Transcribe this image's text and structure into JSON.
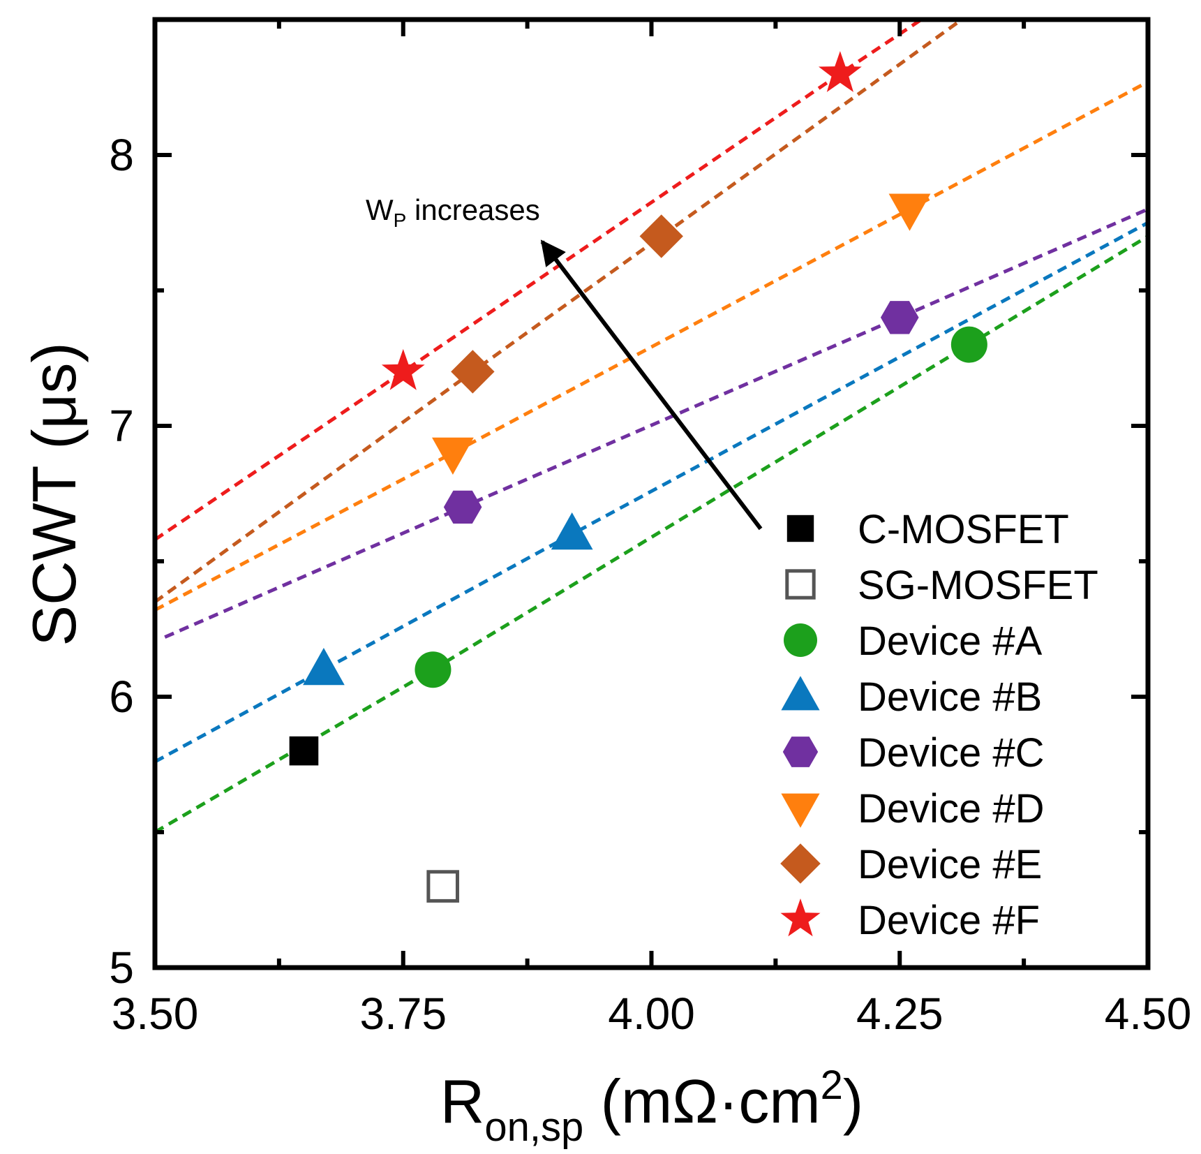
{
  "chart_data": {
    "type": "scatter",
    "title": "",
    "xlabel": {
      "main": "R",
      "sub": "on,sp",
      "unit_prefix": " (mΩ·cm",
      "sup": "2",
      "unit_suffix": ")"
    },
    "ylabel": "SCWT (μs)",
    "xlim": [
      3.5,
      4.5
    ],
    "ylim": [
      5,
      8.5
    ],
    "x_ticks": [
      3.5,
      3.75,
      4.0,
      4.25,
      4.5
    ],
    "x_tick_labels": [
      "3.50",
      "3.75",
      "4.00",
      "4.25",
      "4.50"
    ],
    "x_minor_ticks": [
      3.625,
      3.875,
      4.125,
      4.375
    ],
    "y_ticks": [
      5,
      6,
      7,
      8
    ],
    "y_tick_labels": [
      "5",
      "6",
      "7",
      "8"
    ],
    "y_minor_ticks": [
      5.5,
      6.5,
      7.5
    ],
    "grid": false,
    "legend_position": "bottom-right",
    "series": [
      {
        "name": "C-MOSFET",
        "marker": "square",
        "color": "#000000",
        "filled": true,
        "points": [
          [
            3.65,
            5.8
          ]
        ]
      },
      {
        "name": "SG-MOSFET",
        "marker": "square",
        "color": "#555555",
        "filled": false,
        "points": [
          [
            3.79,
            5.3
          ]
        ]
      },
      {
        "name": "Device #A",
        "marker": "circle",
        "color": "#1ca01c",
        "filled": true,
        "points": [
          [
            3.78,
            6.1
          ],
          [
            4.32,
            7.3
          ]
        ],
        "trend": [
          [
            3.5,
            5.5
          ],
          [
            3.78,
            6.1
          ],
          [
            4.32,
            7.3
          ],
          [
            4.5,
            7.7
          ]
        ]
      },
      {
        "name": "Device #B",
        "marker": "triangle-up",
        "color": "#0a78be",
        "filled": true,
        "points": [
          [
            3.67,
            6.1
          ],
          [
            3.92,
            6.6
          ]
        ],
        "trend": [
          [
            3.5,
            5.76
          ],
          [
            3.67,
            6.1
          ],
          [
            3.92,
            6.6
          ],
          [
            4.5,
            7.75
          ]
        ]
      },
      {
        "name": "Device #C",
        "marker": "hexagon",
        "color": "#7030a0",
        "filled": true,
        "points": [
          [
            3.81,
            6.7
          ],
          [
            4.25,
            7.4
          ]
        ],
        "trend": [
          [
            3.51,
            6.22
          ],
          [
            3.81,
            6.7
          ],
          [
            4.25,
            7.4
          ],
          [
            4.5,
            7.8
          ]
        ]
      },
      {
        "name": "Device #D",
        "marker": "triangle-down",
        "color": "#ff7f0e",
        "filled": true,
        "points": [
          [
            3.8,
            6.9
          ],
          [
            4.26,
            7.8
          ]
        ],
        "trend": [
          [
            3.5,
            6.32
          ],
          [
            3.8,
            6.9
          ],
          [
            4.26,
            7.8
          ],
          [
            4.5,
            8.27
          ]
        ]
      },
      {
        "name": "Device #E",
        "marker": "diamond",
        "color": "#c55a1e",
        "filled": true,
        "points": [
          [
            3.82,
            7.2
          ],
          [
            4.01,
            7.7
          ]
        ],
        "trend": [
          [
            3.5,
            6.35
          ],
          [
            3.82,
            7.2
          ],
          [
            4.01,
            7.7
          ],
          [
            4.32,
            8.52
          ]
        ]
      },
      {
        "name": "Device #F",
        "marker": "star",
        "color": "#ee1c1c",
        "filled": true,
        "points": [
          [
            3.75,
            7.2
          ],
          [
            4.19,
            8.3
          ]
        ],
        "trend": [
          [
            3.5,
            6.58
          ],
          [
            3.75,
            7.2
          ],
          [
            4.19,
            8.3
          ],
          [
            4.28,
            8.52
          ]
        ]
      }
    ],
    "annotations": [
      {
        "text_main": "W",
        "text_sub": "P",
        "text_rest": " increases",
        "arrow_from": [
          4.11,
          6.62
        ],
        "arrow_to": [
          3.89,
          7.68
        ]
      }
    ]
  }
}
